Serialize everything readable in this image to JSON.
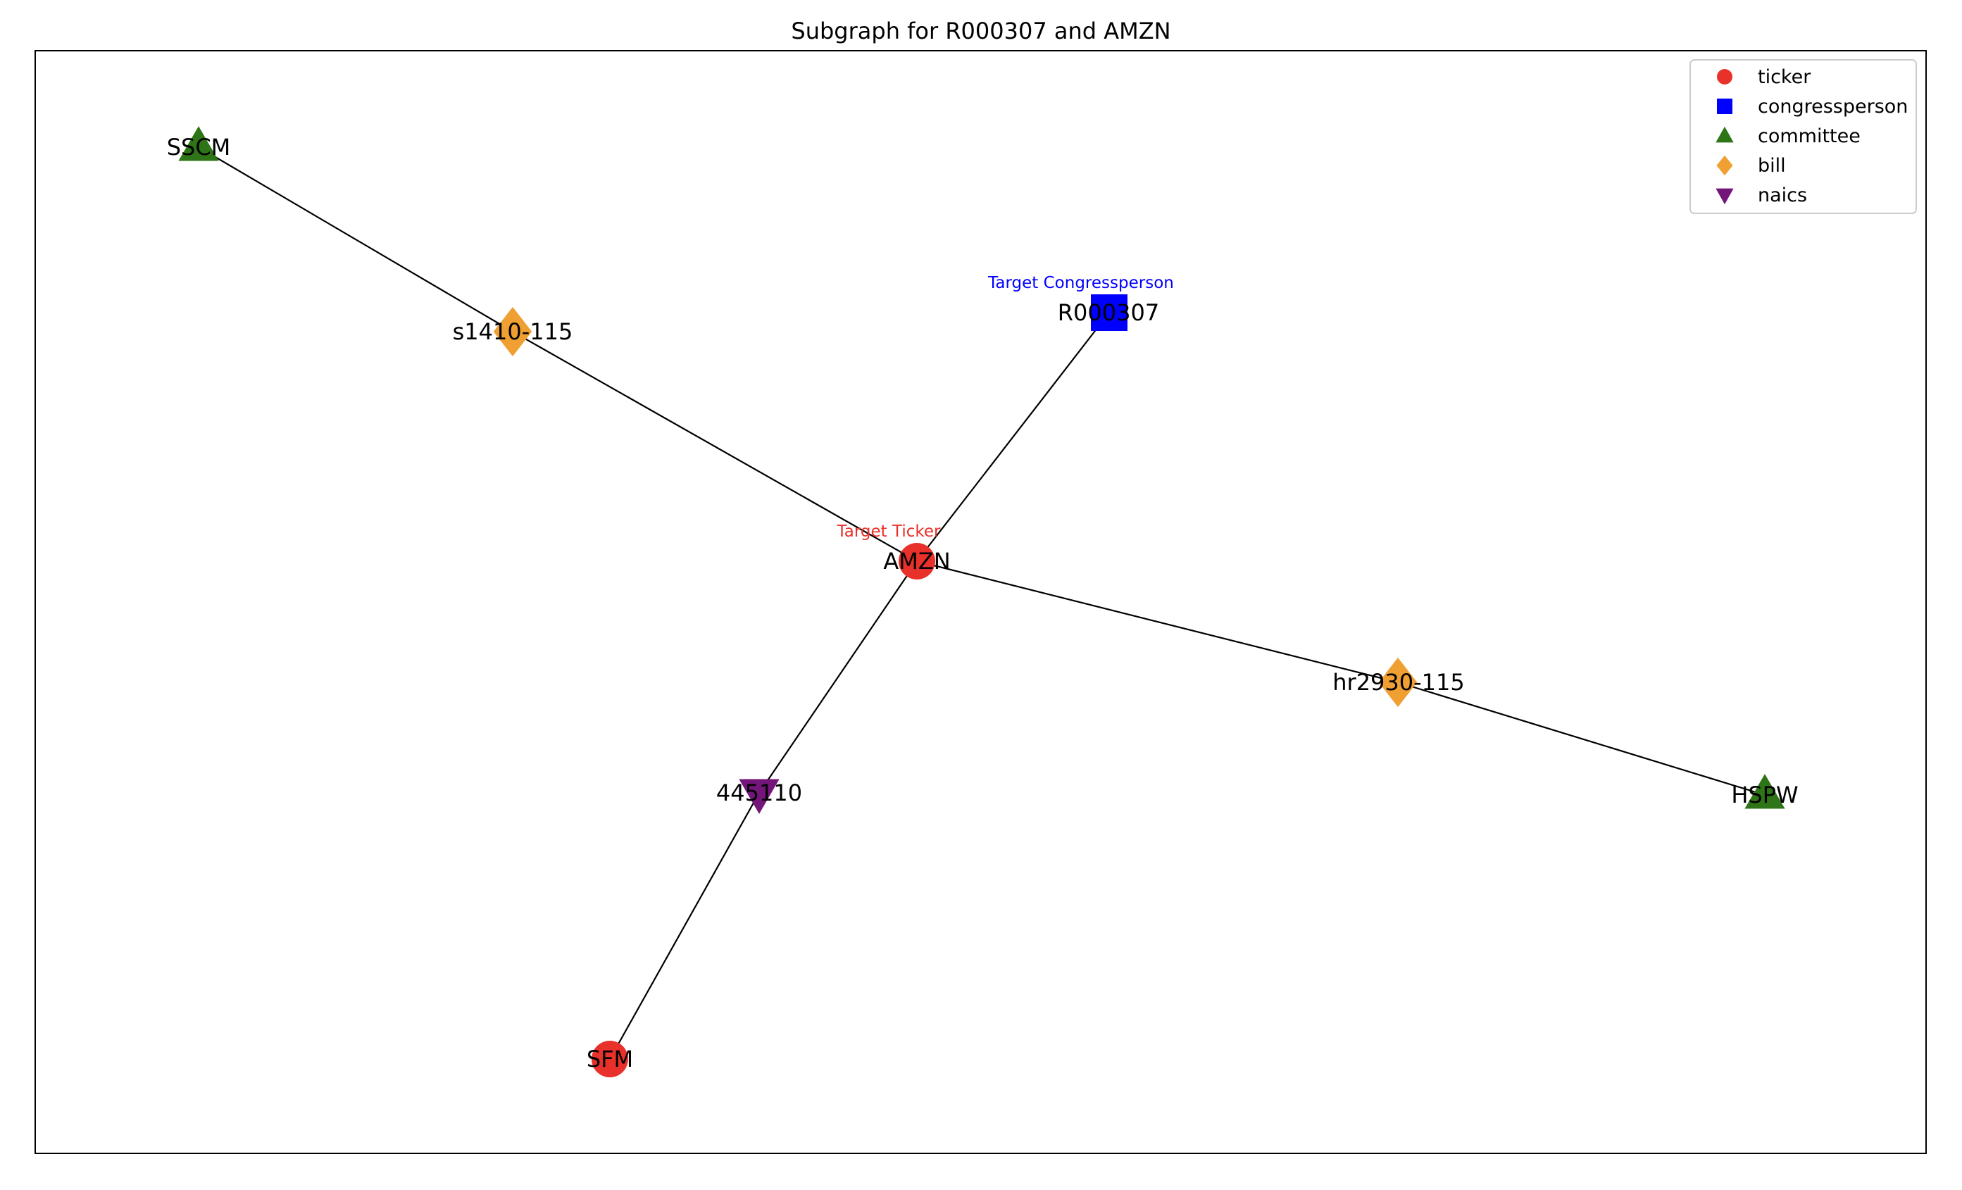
{
  "title": "Subgraph for R000307 and AMZN",
  "node_types": {
    "ticker": {
      "shape": "circle",
      "color": "#e8312a"
    },
    "congressperson": {
      "shape": "square",
      "color": "#0000ff"
    },
    "committee": {
      "shape": "triangle-up",
      "color": "#2e7517"
    },
    "bill": {
      "shape": "diamond",
      "color": "#f0a032"
    },
    "naics": {
      "shape": "triangle-down",
      "color": "#74157a"
    }
  },
  "legend": [
    {
      "type": "ticker",
      "label": "ticker"
    },
    {
      "type": "congressperson",
      "label": "congressperson"
    },
    {
      "type": "committee",
      "label": "committee"
    },
    {
      "type": "bill",
      "label": "bill"
    },
    {
      "type": "naics",
      "label": "naics"
    }
  ],
  "nodes": [
    {
      "id": "SSCM",
      "label": "SSCM",
      "type": "committee"
    },
    {
      "id": "s1410-115",
      "label": "s1410-115",
      "type": "bill"
    },
    {
      "id": "R000307",
      "label": "R000307",
      "type": "congressperson",
      "target_label": "Target Congressperson"
    },
    {
      "id": "AMZN",
      "label": "AMZN",
      "type": "ticker",
      "target_label": "Target Ticker"
    },
    {
      "id": "hr2930-115",
      "label": "hr2930-115",
      "type": "bill"
    },
    {
      "id": "HSPW",
      "label": "HSPW",
      "type": "committee"
    },
    {
      "id": "445110",
      "label": "445110",
      "type": "naics"
    },
    {
      "id": "SFM",
      "label": "SFM",
      "type": "ticker"
    }
  ],
  "edges": [
    [
      "SSCM",
      "s1410-115"
    ],
    [
      "s1410-115",
      "AMZN"
    ],
    [
      "R000307",
      "AMZN"
    ],
    [
      "AMZN",
      "hr2930-115"
    ],
    [
      "hr2930-115",
      "HSPW"
    ],
    [
      "AMZN",
      "445110"
    ],
    [
      "445110",
      "SFM"
    ]
  ]
}
